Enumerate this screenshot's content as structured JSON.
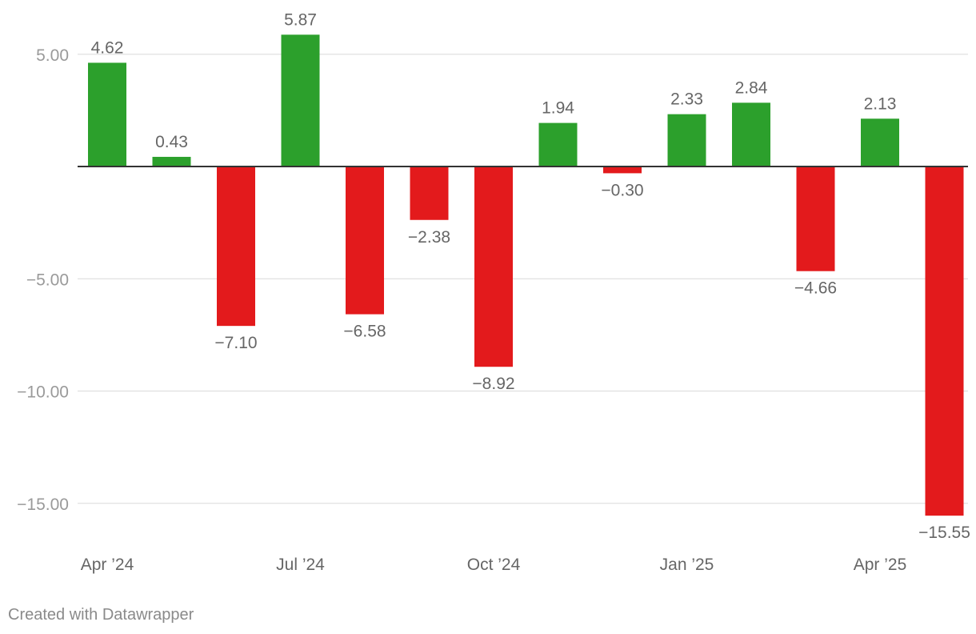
{
  "chart_data": {
    "type": "bar",
    "title": "",
    "xlabel": "",
    "ylabel": "",
    "categories": [
      "Apr 2024",
      "May 2024",
      "Jun 2024",
      "Jul 2024",
      "Aug 2024",
      "Sep 2024",
      "Oct 2024",
      "Nov 2024",
      "Dec 2024",
      "Jan 2025",
      "Feb 2025",
      "Mar 2025",
      "Apr 2025",
      "May 2025"
    ],
    "values": [
      4.62,
      0.43,
      -7.1,
      5.87,
      -6.58,
      -2.38,
      -8.92,
      1.94,
      -0.3,
      2.33,
      2.84,
      -4.66,
      2.13,
      -15.55
    ],
    "value_labels": [
      "4.62",
      "0.43",
      "−7.10",
      "5.87",
      "−6.58",
      "−2.38",
      "−8.92",
      "1.94",
      "−0.30",
      "2.33",
      "2.84",
      "−4.66",
      "2.13",
      "−15.55"
    ],
    "x_tick_labels": [
      {
        "category_index": 0,
        "label": "Apr ’24"
      },
      {
        "category_index": 3,
        "label": "Jul ’24"
      },
      {
        "category_index": 6,
        "label": "Oct ’24"
      },
      {
        "category_index": 9,
        "label": "Jan ’25"
      },
      {
        "category_index": 12,
        "label": "Apr ’25"
      }
    ],
    "y_ticks": [
      {
        "value": 5,
        "label": "5.00"
      },
      {
        "value": -5,
        "label": "−5.00"
      },
      {
        "value": -10,
        "label": "−10.00"
      },
      {
        "value": -15,
        "label": "−15.00"
      }
    ],
    "ylim": [
      -16.5,
      5.87
    ],
    "grid": true,
    "legend": "none",
    "colors": {
      "positive": "#2ca02c",
      "negative": "#e31a1c",
      "grid": "#e0e0e0",
      "baseline": "#333333",
      "axis_text": "#9a9a9a",
      "label_text": "#666666"
    }
  },
  "footer": {
    "credit": "Created with Datawrapper"
  }
}
